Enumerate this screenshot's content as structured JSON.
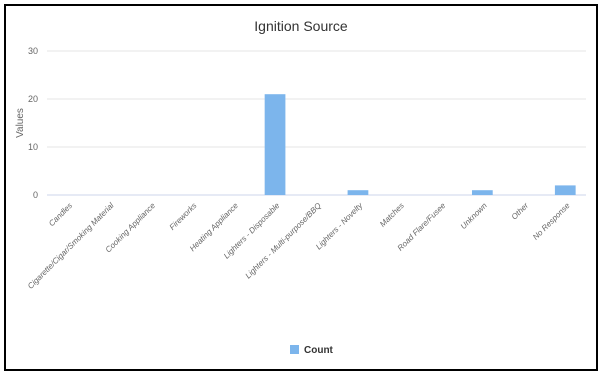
{
  "chart_data": {
    "type": "bar",
    "title": "Ignition Source",
    "ylabel": "Values",
    "xlabel": "",
    "ylim": [
      0,
      30
    ],
    "yticks": [
      0,
      10,
      20,
      30
    ],
    "grid": true,
    "legend_position": "bottom",
    "categories": [
      "Candles",
      "Cigarette/Cigar/Smoking Material",
      "Cooking Appliance",
      "Fireworks",
      "Heating Appliance",
      "Lighters - Disposable",
      "Lighters - Multi-purpose/BBQ",
      "Lighters - Novelty",
      "Matches",
      "Road Flare/Fusee",
      "Unknown",
      "Other",
      "No Response"
    ],
    "series": [
      {
        "name": "Count",
        "values": [
          0,
          0,
          0,
          0,
          0,
          21,
          0,
          1,
          0,
          0,
          1,
          0,
          2
        ]
      }
    ],
    "colors": {
      "bar": "#7cb5ec",
      "grid": "#e6e6e6",
      "axis": "#ccd6eb"
    }
  }
}
